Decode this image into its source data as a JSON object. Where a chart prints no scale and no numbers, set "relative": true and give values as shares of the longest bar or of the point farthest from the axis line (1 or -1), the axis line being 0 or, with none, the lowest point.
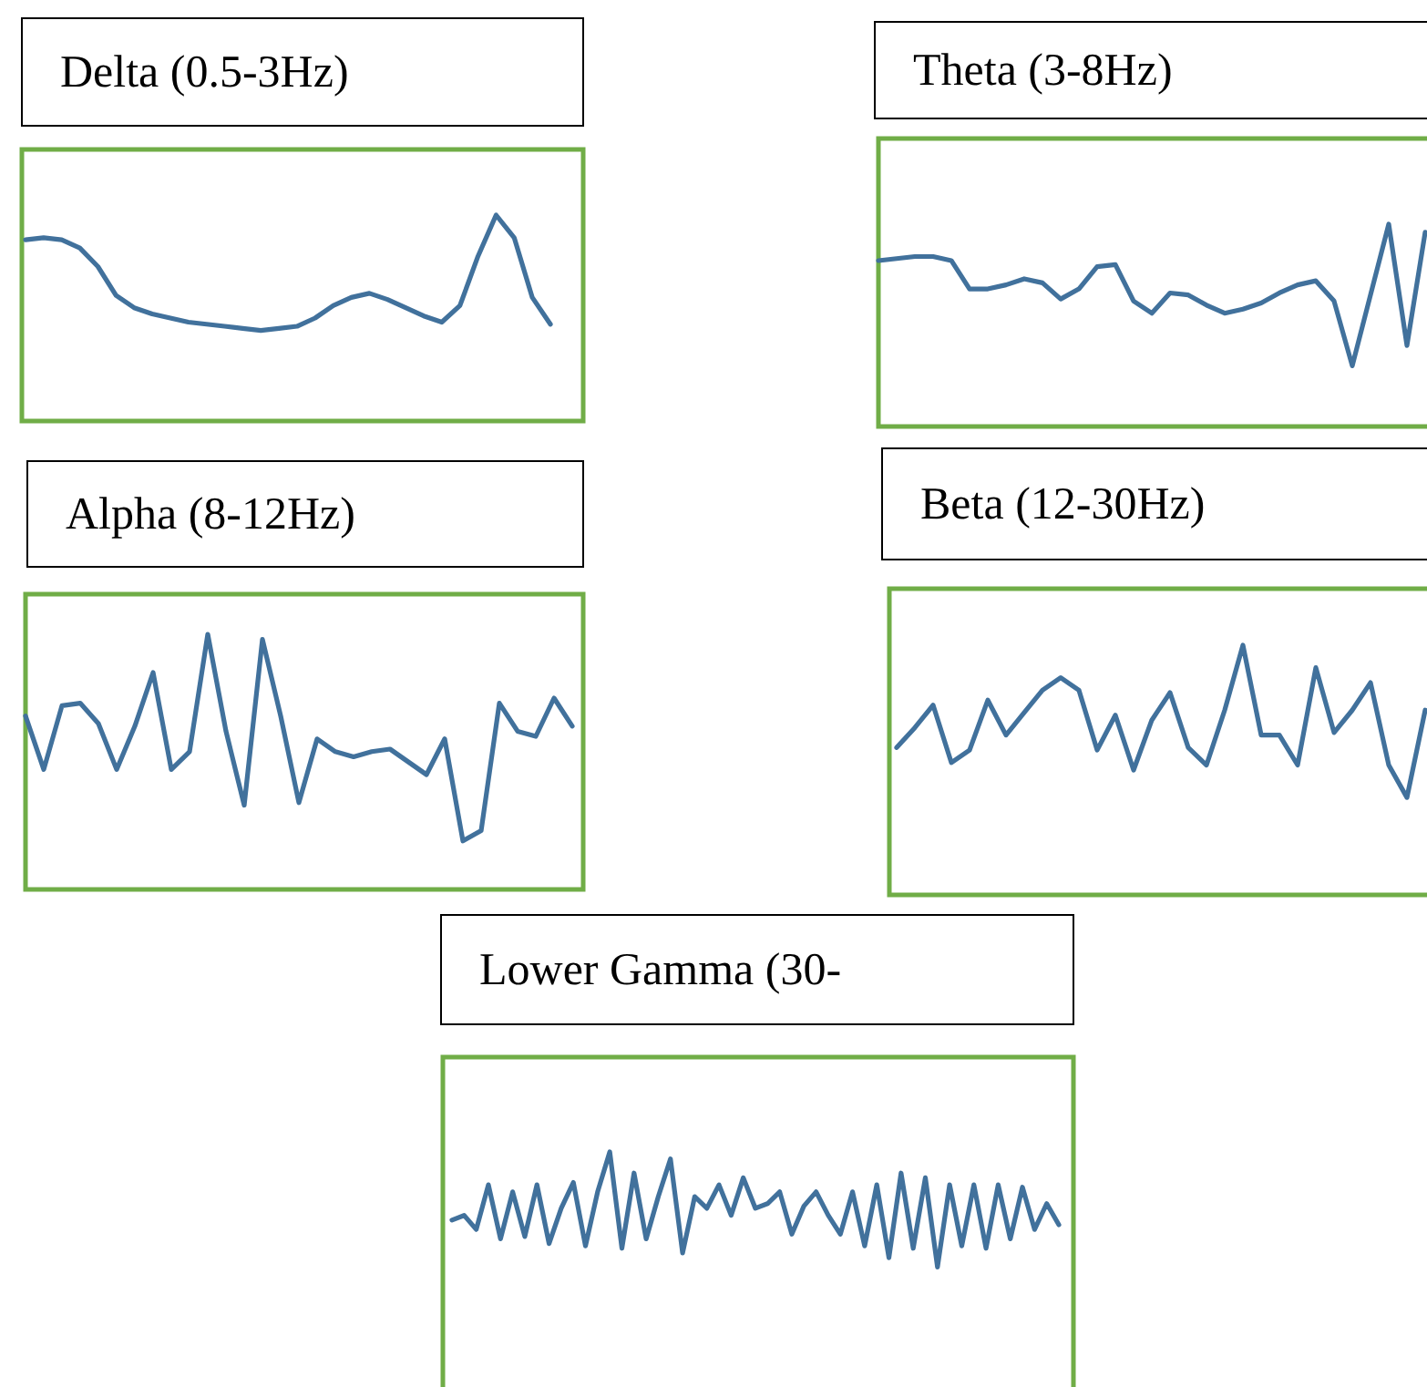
{
  "chart_data": [
    {
      "type": "line",
      "title": "Delta (0.5-3Hz)",
      "relative": true,
      "categories": [
        null,
        null,
        null,
        null,
        null,
        null,
        null,
        null,
        null,
        null,
        null,
        null,
        null,
        null,
        null,
        null,
        null,
        null,
        null,
        null,
        null,
        null,
        null,
        null,
        null,
        null,
        null,
        null,
        null,
        null
      ],
      "color": "#41719c",
      "values": [
        0.88,
        0.89,
        0.88,
        0.84,
        0.75,
        0.61,
        0.55,
        0.52,
        0.5,
        0.48,
        0.47,
        0.46,
        0.45,
        0.44,
        0.45,
        0.46,
        0.5,
        0.56,
        0.6,
        0.62,
        0.59,
        0.55,
        0.51,
        0.48,
        0.56,
        0.8,
        1,
        0.89,
        0.6,
        0.47
      ]
    },
    {
      "type": "line",
      "title": "Theta (3-8Hz)",
      "relative": true,
      "categories": [
        null,
        null,
        null,
        null,
        null,
        null,
        null,
        null,
        null,
        null,
        null,
        null,
        null,
        null,
        null,
        null,
        null,
        null,
        null,
        null,
        null,
        null,
        null,
        null,
        null,
        null,
        null,
        null,
        null,
        null,
        null
      ],
      "color": "#41719c",
      "values": [
        0.82,
        0.83,
        0.84,
        0.84,
        0.82,
        0.68,
        0.68,
        0.7,
        0.73,
        0.71,
        0.63,
        0.68,
        0.79,
        0.8,
        0.62,
        0.56,
        0.66,
        0.65,
        0.6,
        0.56,
        0.58,
        0.61,
        0.66,
        0.7,
        0.72,
        0.62,
        0.3,
        0.65,
        1,
        0.4,
        0.96
      ]
    },
    {
      "type": "line",
      "title": "Alpha (8-12Hz)",
      "relative": true,
      "categories": [
        null,
        null,
        null,
        null,
        null,
        null,
        null,
        null,
        null,
        null,
        null,
        null,
        null,
        null,
        null,
        null,
        null,
        null,
        null,
        null,
        null,
        null,
        null,
        null,
        null,
        null,
        null,
        null,
        null,
        null,
        null
      ],
      "color": "#41719c",
      "values": [
        0.68,
        0.47,
        0.72,
        0.73,
        0.65,
        0.47,
        0.64,
        0.85,
        0.47,
        0.54,
        1,
        0.62,
        0.33,
        0.98,
        0.68,
        0.34,
        0.59,
        0.54,
        0.52,
        0.54,
        0.55,
        0.5,
        0.45,
        0.59,
        0.19,
        0.23,
        0.73,
        0.62,
        0.6,
        0.75,
        0.64
      ]
    },
    {
      "type": "line",
      "title": "Beta (12-30Hz)",
      "relative": true,
      "categories": [
        null,
        null,
        null,
        null,
        null,
        null,
        null,
        null,
        null,
        null,
        null,
        null,
        null,
        null,
        null,
        null,
        null,
        null,
        null,
        null,
        null,
        null,
        null,
        null,
        null,
        null,
        null,
        null,
        null,
        null
      ],
      "color": "#41719c",
      "values": [
        0.59,
        0.67,
        0.76,
        0.53,
        0.58,
        0.78,
        0.64,
        0.73,
        0.82,
        0.87,
        0.82,
        0.58,
        0.72,
        0.5,
        0.7,
        0.81,
        0.59,
        0.52,
        0.74,
        1,
        0.64,
        0.64,
        0.52,
        0.91,
        0.65,
        0.74,
        0.85,
        0.52,
        0.39,
        0.74
      ]
    },
    {
      "type": "line",
      "title": "Lower Gamma (30-",
      "relative": true,
      "categories": [
        null,
        null,
        null,
        null,
        null,
        null,
        null,
        null,
        null,
        null,
        null,
        null,
        null,
        null,
        null,
        null,
        null,
        null,
        null,
        null,
        null,
        null,
        null,
        null,
        null,
        null,
        null,
        null,
        null,
        null,
        null,
        null,
        null,
        null,
        null,
        null,
        null,
        null,
        null,
        null,
        null,
        null,
        null,
        null,
        null,
        null,
        null,
        null,
        null,
        null,
        null
      ],
      "color": "#41719c",
      "values": [
        0.71,
        0.73,
        0.67,
        0.86,
        0.63,
        0.83,
        0.64,
        0.86,
        0.61,
        0.76,
        0.87,
        0.6,
        0.83,
        1,
        0.59,
        0.91,
        0.63,
        0.81,
        0.97,
        0.57,
        0.81,
        0.76,
        0.86,
        0.73,
        0.89,
        0.76,
        0.78,
        0.83,
        0.65,
        0.77,
        0.83,
        0.73,
        0.65,
        0.83,
        0.6,
        0.86,
        0.55,
        0.91,
        0.59,
        0.89,
        0.51,
        0.86,
        0.6,
        0.86,
        0.59,
        0.86,
        0.63,
        0.85,
        0.67,
        0.78,
        0.69
      ]
    }
  ]
}
